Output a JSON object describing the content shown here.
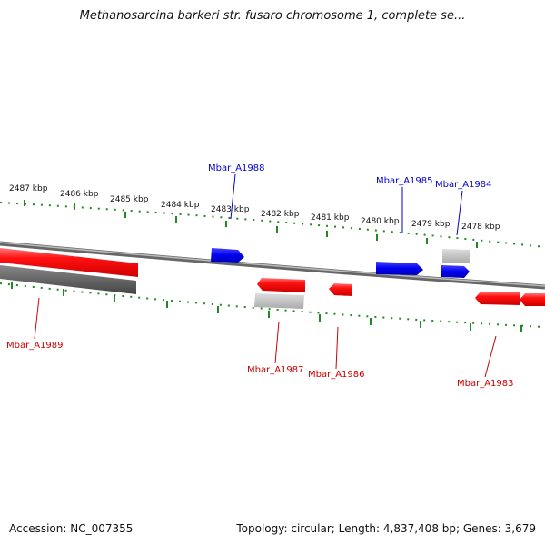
{
  "title": "Methanosarcina barkeri str. fusaro chromosome 1, complete se...",
  "footer": {
    "accession": "Accession: NC_007355",
    "stats": "Topology: circular; Length: 4,837,408 bp; Genes: 3,679"
  },
  "colors": {
    "forward_gene": "#1111dd",
    "reverse_gene": "#ee1111",
    "pseudo_gene_light": "#bbbbbb",
    "pseudo_gene_dark": "#555555",
    "backbone": "#888888",
    "ticks": "#228822"
  },
  "scale": {
    "ticks": [
      {
        "label": "2487 kbp"
      },
      {
        "label": "2486 kbp"
      },
      {
        "label": "2485 kbp"
      },
      {
        "label": "2484 kbp"
      },
      {
        "label": "2483 kbp"
      },
      {
        "label": "2482 kbp"
      },
      {
        "label": "2481 kbp"
      },
      {
        "label": "2480 kbp"
      },
      {
        "label": "2479 kbp"
      },
      {
        "label": "2478 kbp"
      }
    ]
  },
  "gene_labels": {
    "forward": [
      "Mbar_A1988",
      "Mbar_A1985",
      "Mbar_A1984"
    ],
    "reverse": [
      "Mbar_A1989",
      "Mbar_A1987",
      "Mbar_A1986",
      "Mbar_A1983"
    ]
  }
}
